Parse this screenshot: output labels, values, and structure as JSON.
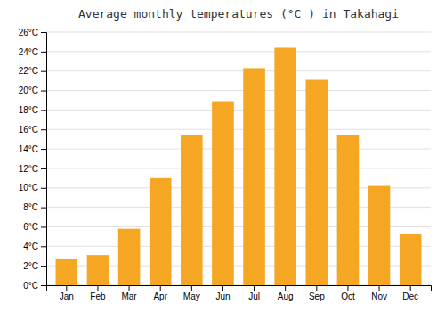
{
  "chart_data": {
    "type": "bar",
    "title": "Average monthly temperatures (°C ) in Takahagi",
    "categories": [
      "Jan",
      "Feb",
      "Mar",
      "Apr",
      "May",
      "Jun",
      "Jul",
      "Aug",
      "Sep",
      "Oct",
      "Nov",
      "Dec"
    ],
    "values": [
      2.7,
      3.1,
      5.8,
      11.0,
      15.4,
      18.9,
      22.3,
      24.4,
      21.1,
      15.4,
      10.2,
      5.3
    ],
    "color": "#F5A623",
    "ylim": [
      0,
      26
    ],
    "yticks": [
      {
        "value": 0,
        "label": "0°C"
      },
      {
        "value": 2,
        "label": "2°C"
      },
      {
        "value": 4,
        "label": "4°C"
      },
      {
        "value": 6,
        "label": "6°C"
      },
      {
        "value": 8,
        "label": "8°C"
      },
      {
        "value": 10,
        "label": "10°C"
      },
      {
        "value": 12,
        "label": "12°C"
      },
      {
        "value": 14,
        "label": "14°C"
      },
      {
        "value": 16,
        "label": "16°C"
      },
      {
        "value": 18,
        "label": "18°C"
      },
      {
        "value": 20,
        "label": "20°C"
      },
      {
        "value": 22,
        "label": "22°C"
      },
      {
        "value": 24,
        "label": "24°C"
      },
      {
        "value": 26,
        "label": "26°C"
      }
    ],
    "grid": true
  }
}
